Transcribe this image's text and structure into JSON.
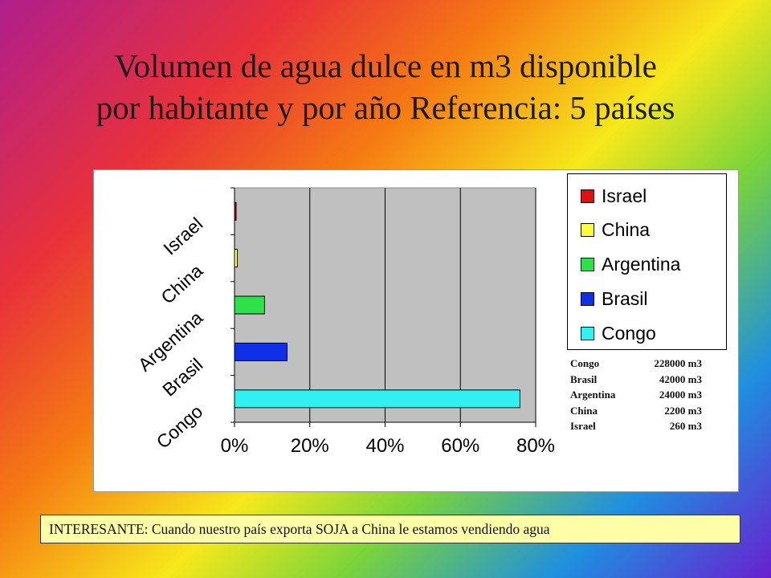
{
  "title_line1": "Volumen de agua dulce en m3 disponible",
  "title_line2": "por habitante y por año Referencia: 5 países",
  "chart_data": {
    "type": "bar",
    "orientation": "horizontal",
    "categories": [
      "Israel",
      "China",
      "Argentina",
      "Brasil",
      "Congo"
    ],
    "values": [
      0.09,
      0.74,
      7.98,
      13.97,
      75.82
    ],
    "value_unit": "%",
    "xlim": [
      0,
      80
    ],
    "xticks": [
      "0%",
      "20%",
      "40%",
      "60%",
      "80%"
    ],
    "grid": true,
    "legend_position": "right",
    "colors": [
      "#e01010",
      "#ffff3c",
      "#2ee04a",
      "#1030e8",
      "#30f0f0"
    ],
    "legend": [
      "Israel",
      "China",
      "Argentina",
      "Brasil",
      "Congo"
    ]
  },
  "volumes": [
    {
      "name": "Congo",
      "value": "228000 m3"
    },
    {
      "name": "Brasil",
      "value": "42000 m3"
    },
    {
      "name": "Argentina",
      "value": "24000 m3"
    },
    {
      "name": "China",
      "value": "2200 m3"
    },
    {
      "name": "Israel",
      "value": "260 m3"
    }
  ],
  "footnote": "INTERESANTE: Cuando nuestro país exporta SOJA a China le estamos vendiendo agua"
}
